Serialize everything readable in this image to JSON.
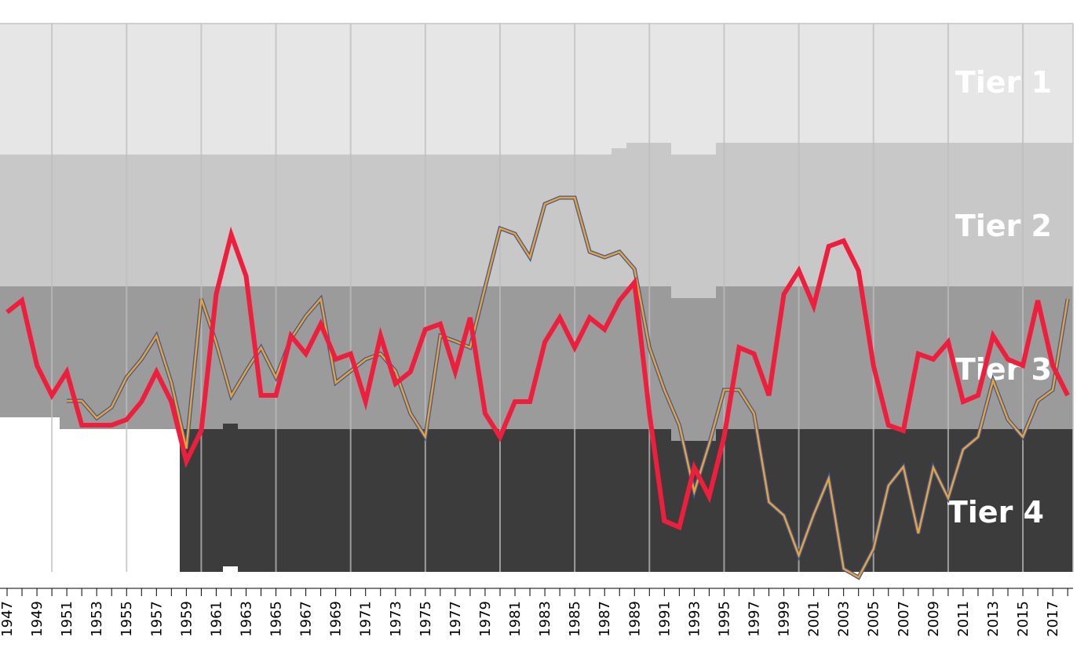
{
  "chart_data": {
    "type": "line",
    "title": "",
    "xlabel": "",
    "ylabel": "",
    "x_range": [
      1947,
      2018
    ],
    "y_axis": "league position (inverted)",
    "grid": true,
    "tiers": [
      {
        "label": "Tier 1",
        "color": "#e6e6e6"
      },
      {
        "label": "Tier 2",
        "color": "#c8c8c8"
      },
      {
        "label": "Tier 3",
        "color": "#9b9b9b"
      },
      {
        "label": "Tier 4",
        "color": "#3c3c3c"
      }
    ],
    "x_tick_labels": [
      "1947",
      "1949",
      "1951",
      "1953",
      "1955",
      "1957",
      "1959",
      "1961",
      "1963",
      "1965",
      "1967",
      "1969",
      "1971",
      "1973",
      "1975",
      "1977",
      "1979",
      "1981",
      "1983",
      "1985",
      "1987",
      "1989",
      "1991",
      "1993",
      "1995",
      "1997",
      "1999",
      "2001",
      "2003",
      "2005",
      "2007",
      "2009",
      "2011",
      "2013",
      "2015",
      "2017"
    ],
    "series": [
      {
        "color": "#f0a12b",
        "outline_color": "#3a5a9c",
        "points": [
          [
            1951,
            511
          ],
          [
            1952,
            511
          ],
          [
            1953,
            533
          ],
          [
            1954,
            519
          ],
          [
            1955,
            481
          ],
          [
            1956,
            458
          ],
          [
            1957,
            428
          ],
          [
            1958,
            488
          ],
          [
            1959,
            572
          ],
          [
            1960,
            381
          ],
          [
            1961,
            437
          ],
          [
            1962,
            505
          ],
          [
            1963,
            473
          ],
          [
            1964,
            443
          ],
          [
            1965,
            481
          ],
          [
            1966,
            432
          ],
          [
            1967,
            403
          ],
          [
            1968,
            381
          ],
          [
            1969,
            488
          ],
          [
            1970,
            473
          ],
          [
            1971,
            458
          ],
          [
            1972,
            451
          ],
          [
            1973,
            473
          ],
          [
            1974,
            527
          ],
          [
            1975,
            557
          ],
          [
            1976,
            428
          ],
          [
            1977,
            435
          ],
          [
            1978,
            443
          ],
          [
            1979,
            366
          ],
          [
            1980,
            291
          ],
          [
            1981,
            298
          ],
          [
            1982,
            328
          ],
          [
            1983,
            260
          ],
          [
            1984,
            252
          ],
          [
            1985,
            252
          ],
          [
            1986,
            321
          ],
          [
            1987,
            328
          ],
          [
            1988,
            321
          ],
          [
            1989,
            343
          ],
          [
            1990,
            443
          ],
          [
            1991,
            497
          ],
          [
            1992,
            542
          ],
          [
            1993,
            627
          ],
          [
            1994,
            566
          ],
          [
            1995,
            497
          ],
          [
            1996,
            497
          ],
          [
            1997,
            527
          ],
          [
            1998,
            640
          ],
          [
            1999,
            657
          ],
          [
            2000,
            708
          ],
          [
            2001,
            656
          ],
          [
            2002,
            610
          ],
          [
            2003,
            725
          ],
          [
            2004,
            736
          ],
          [
            2005,
            700
          ],
          [
            2006,
            619
          ],
          [
            2007,
            595
          ],
          [
            2008,
            680
          ],
          [
            2009,
            596
          ],
          [
            2010,
            635
          ],
          [
            2011,
            573
          ],
          [
            2012,
            557
          ],
          [
            2013,
            485
          ],
          [
            2014,
            535
          ],
          [
            2015,
            557
          ],
          [
            2016,
            511
          ],
          [
            2017,
            497
          ],
          [
            2018,
            381
          ]
        ]
      },
      {
        "color": "#ee1f3c",
        "points": [
          [
            1947,
            398
          ],
          [
            1948,
            383
          ],
          [
            1949,
            466
          ],
          [
            1950,
            504
          ],
          [
            1951,
            474
          ],
          [
            1952,
            542
          ],
          [
            1953,
            542
          ],
          [
            1954,
            542
          ],
          [
            1955,
            535
          ],
          [
            1956,
            512
          ],
          [
            1957,
            474
          ],
          [
            1958,
            512
          ],
          [
            1959,
            588
          ],
          [
            1960,
            549
          ],
          [
            1961,
            375
          ],
          [
            1962,
            299
          ],
          [
            1963,
            352
          ],
          [
            1964,
            504
          ],
          [
            1965,
            504
          ],
          [
            1966,
            428
          ],
          [
            1967,
            451
          ],
          [
            1968,
            413
          ],
          [
            1969,
            458
          ],
          [
            1970,
            451
          ],
          [
            1971,
            512
          ],
          [
            1972,
            428
          ],
          [
            1973,
            489
          ],
          [
            1974,
            474
          ],
          [
            1975,
            420
          ],
          [
            1976,
            413
          ],
          [
            1977,
            474
          ],
          [
            1978,
            405
          ],
          [
            1979,
            527
          ],
          [
            1980,
            557
          ],
          [
            1981,
            512
          ],
          [
            1982,
            512
          ],
          [
            1983,
            436
          ],
          [
            1984,
            405
          ],
          [
            1985,
            443
          ],
          [
            1986,
            405
          ],
          [
            1987,
            420
          ],
          [
            1988,
            383
          ],
          [
            1989,
            360
          ],
          [
            1990,
            527
          ],
          [
            1991,
            664
          ],
          [
            1992,
            672
          ],
          [
            1993,
            596
          ],
          [
            1994,
            633
          ],
          [
            1995,
            557
          ],
          [
            1996,
            443
          ],
          [
            1997,
            451
          ],
          [
            1998,
            504
          ],
          [
            1999,
            375
          ],
          [
            2000,
            345
          ],
          [
            2001,
            390
          ],
          [
            2002,
            314
          ],
          [
            2003,
            307
          ],
          [
            2004,
            345
          ],
          [
            2005,
            466
          ],
          [
            2006,
            542
          ],
          [
            2007,
            549
          ],
          [
            2008,
            451
          ],
          [
            2009,
            458
          ],
          [
            2010,
            436
          ],
          [
            2011,
            512
          ],
          [
            2012,
            504
          ],
          [
            2013,
            428
          ],
          [
            2014,
            458
          ],
          [
            2015,
            466
          ],
          [
            2016,
            383
          ],
          [
            2017,
            466
          ],
          [
            2018,
            504
          ]
        ]
      }
    ]
  }
}
